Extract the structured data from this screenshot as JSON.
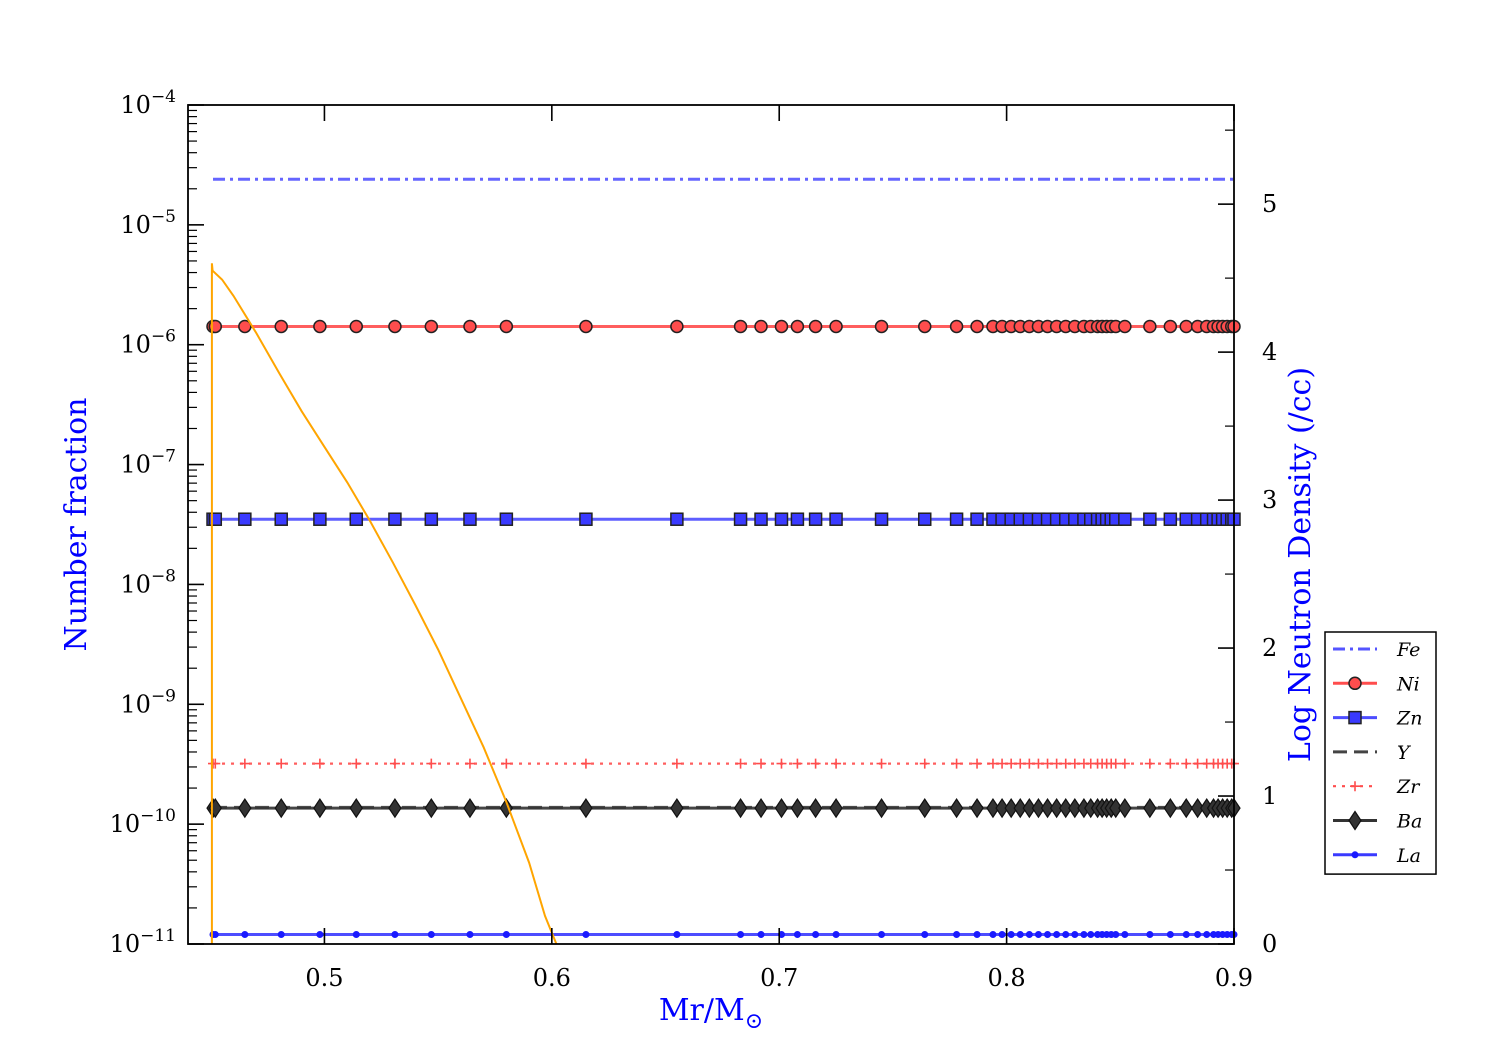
{
  "chart_data": {
    "type": "line",
    "xlabel": "Mr/M",
    "xlabel_sub": "⊙",
    "ylabel_left": "Number fraction",
    "ylabel_right": "Log Neutron Density (/cc)",
    "x_range": [
      0.44,
      0.9
    ],
    "x_ticks": [
      {
        "v": 0.5,
        "label": "0.5"
      },
      {
        "v": 0.6,
        "label": "0.6"
      },
      {
        "v": 0.7,
        "label": "0.7"
      },
      {
        "v": 0.8,
        "label": "0.8"
      },
      {
        "v": 0.9,
        "label": "0.9"
      }
    ],
    "y_left_scale": "log",
    "y_left_range": [
      1e-11,
      0.0001
    ],
    "y_left_ticks": [
      {
        "exp": -4,
        "base": "10",
        "power": "−4"
      },
      {
        "exp": -5,
        "base": "10",
        "power": "−5"
      },
      {
        "exp": -6,
        "base": "10",
        "power": "−6"
      },
      {
        "exp": -7,
        "base": "10",
        "power": "−7"
      },
      {
        "exp": -8,
        "base": "10",
        "power": "−8"
      },
      {
        "exp": -9,
        "base": "10",
        "power": "−9"
      },
      {
        "exp": -10,
        "base": "10",
        "power": "−10"
      },
      {
        "exp": -11,
        "base": "10",
        "power": "−11"
      }
    ],
    "y_right_range": [
      0,
      5.67
    ],
    "y_right_ticks": [
      {
        "v": 0,
        "label": "0"
      },
      {
        "v": 1,
        "label": "1"
      },
      {
        "v": 2,
        "label": "2"
      },
      {
        "v": 3,
        "label": "3"
      },
      {
        "v": 4,
        "label": "4"
      },
      {
        "v": 5,
        "label": "5"
      }
    ],
    "marker_x": [
      0.451,
      0.452,
      0.465,
      0.481,
      0.498,
      0.514,
      0.531,
      0.547,
      0.564,
      0.58,
      0.615,
      0.655,
      0.683,
      0.692,
      0.701,
      0.708,
      0.716,
      0.725,
      0.745,
      0.764,
      0.778,
      0.787,
      0.794,
      0.798,
      0.802,
      0.806,
      0.81,
      0.814,
      0.818,
      0.822,
      0.826,
      0.83,
      0.834,
      0.837,
      0.84,
      0.842,
      0.844,
      0.846,
      0.848,
      0.852,
      0.863,
      0.872,
      0.879,
      0.884,
      0.888,
      0.891,
      0.893,
      0.895,
      0.897,
      0.899,
      0.9
    ],
    "series": [
      {
        "name": "Fe",
        "value": 2.4e-05,
        "color": "#5555ff",
        "dash": "dashdot",
        "marker": "none"
      },
      {
        "name": "Ni",
        "value": 1.42e-06,
        "color": "#ff4d4d",
        "dash": "solid",
        "marker": "circle",
        "marker_fill": "#ff4d4d"
      },
      {
        "name": "Zn",
        "value": 3.5e-08,
        "color": "#4d4dff",
        "dash": "solid",
        "marker": "square",
        "marker_fill": "#3a3aff"
      },
      {
        "name": "Y",
        "value": 1.38e-10,
        "color": "#444444",
        "dash": "dashed",
        "marker": "none"
      },
      {
        "name": "Zr",
        "value": 3.2e-10,
        "color": "#ff4d4d",
        "dash": "dotted",
        "marker": "plus"
      },
      {
        "name": "Ba",
        "value": 1.36e-10,
        "color": "#333333",
        "dash": "solid",
        "marker": "diamond",
        "marker_fill": "#333333"
      },
      {
        "name": "La",
        "value": 1.2e-11,
        "color": "#3a3aff",
        "dash": "solid",
        "marker": "dot",
        "marker_fill": "#1a1aff"
      }
    ],
    "neutron_density": {
      "color": "#ffa500",
      "axis": "right",
      "points": [
        [
          0.4505,
          0.0
        ],
        [
          0.4505,
          4.6
        ],
        [
          0.4508,
          4.55
        ],
        [
          0.455,
          4.49
        ],
        [
          0.46,
          4.38
        ],
        [
          0.47,
          4.13
        ],
        [
          0.48,
          3.86
        ],
        [
          0.49,
          3.6
        ],
        [
          0.5,
          3.36
        ],
        [
          0.51,
          3.12
        ],
        [
          0.52,
          2.86
        ],
        [
          0.53,
          2.58
        ],
        [
          0.54,
          2.29
        ],
        [
          0.55,
          1.99
        ],
        [
          0.56,
          1.66
        ],
        [
          0.57,
          1.33
        ],
        [
          0.58,
          0.96
        ],
        [
          0.59,
          0.55
        ],
        [
          0.597,
          0.19
        ],
        [
          0.602,
          0.0
        ]
      ]
    },
    "legend_position": "right"
  }
}
